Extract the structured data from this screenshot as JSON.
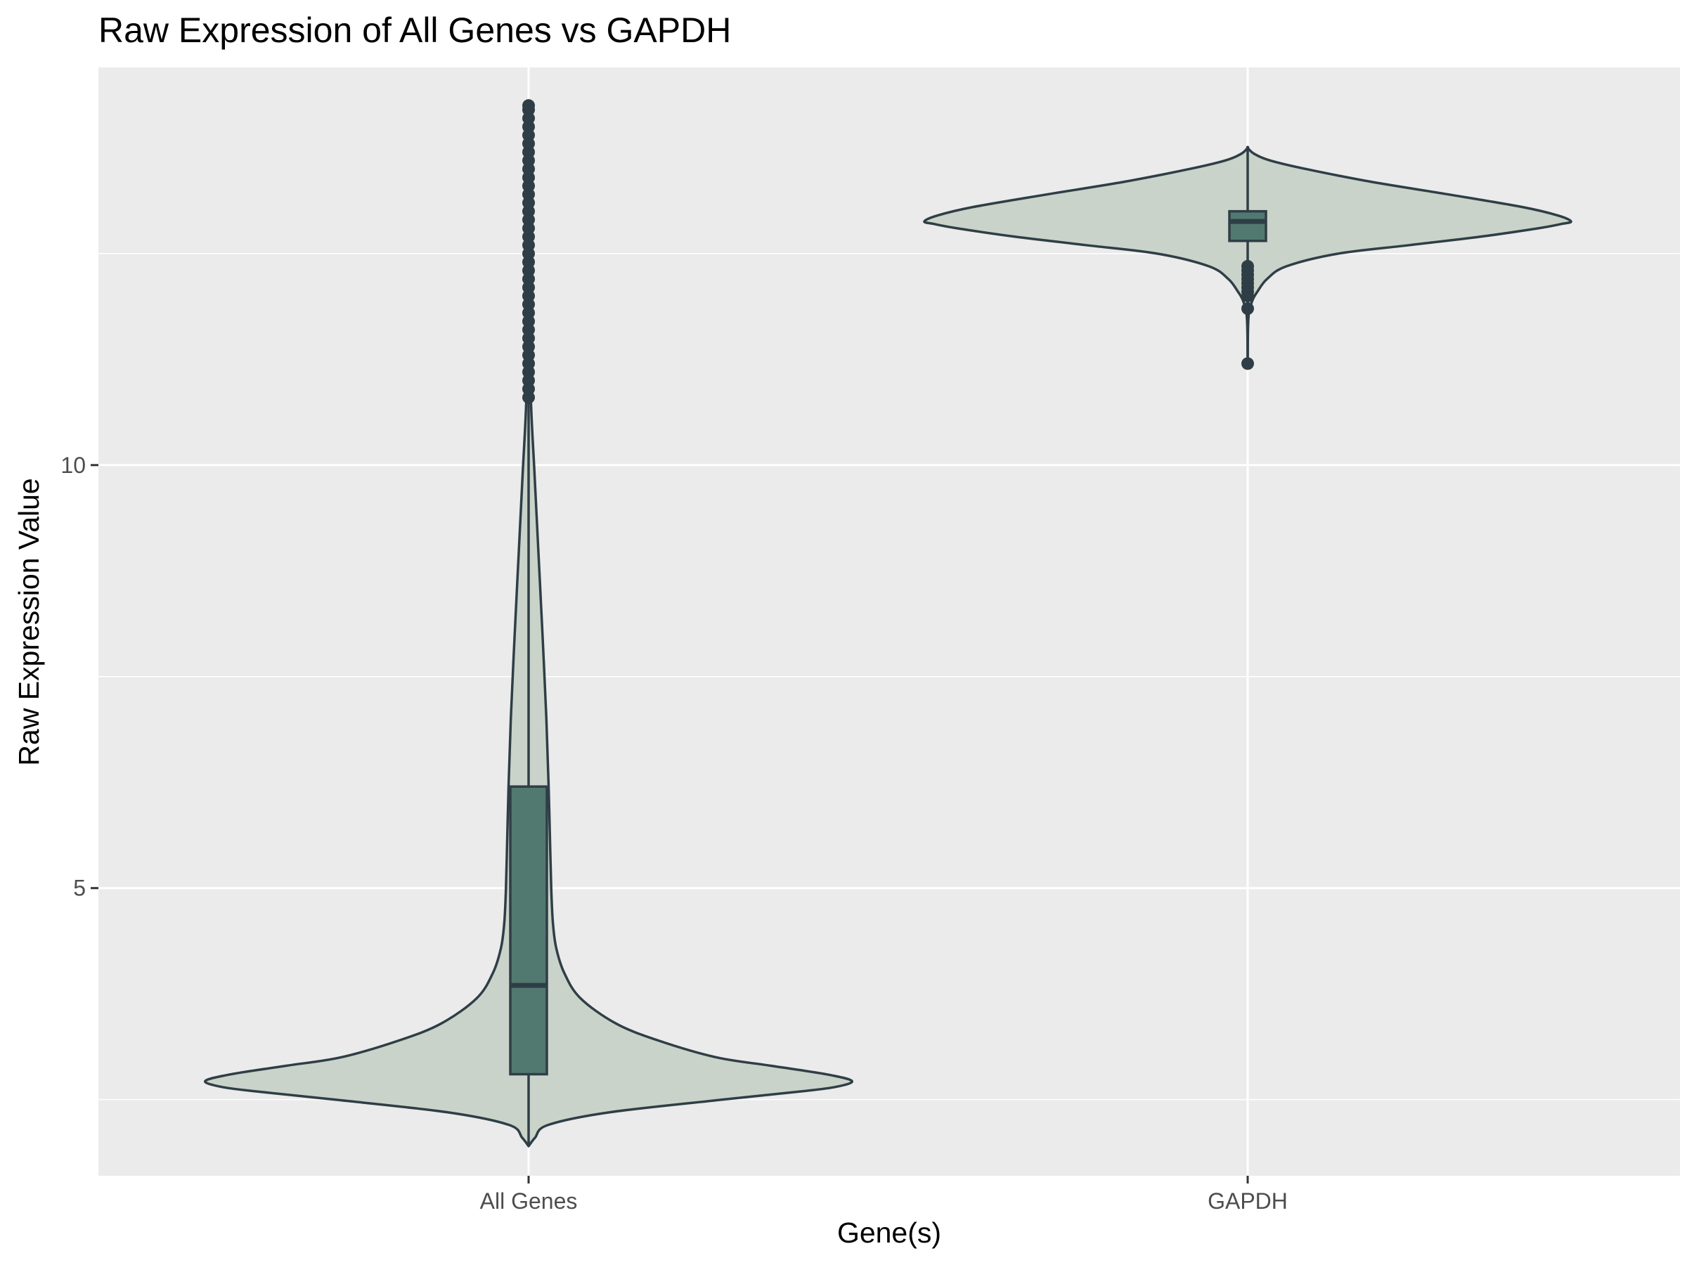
{
  "chart_data": {
    "type": "violin",
    "title": "Raw Expression of All Genes vs GAPDH",
    "xlabel": "Gene(s)",
    "ylabel": "Raw Expression Value",
    "categories": [
      "All Genes",
      "GAPDH"
    ],
    "yticks": [
      5,
      10
    ],
    "ylim": [
      1.6,
      14.7
    ],
    "grid": true,
    "legend": "none",
    "colors": {
      "panel": "#ebebeb",
      "grid": "#ffffff",
      "violin_fill": "#c9d3c9",
      "box_fill": "#52796f",
      "outline": "#2f3e46"
    },
    "series": [
      {
        "category": "All Genes",
        "violin_min": 1.95,
        "violin_max": 14.25,
        "density": [
          [
            1.95,
            0.0
          ],
          [
            2.05,
            0.02
          ],
          [
            2.2,
            0.06
          ],
          [
            2.35,
            0.25
          ],
          [
            2.5,
            0.6
          ],
          [
            2.6,
            0.85
          ],
          [
            2.65,
            0.95
          ],
          [
            2.72,
            1.0
          ],
          [
            2.8,
            0.92
          ],
          [
            2.9,
            0.75
          ],
          [
            3.0,
            0.58
          ],
          [
            3.2,
            0.4
          ],
          [
            3.4,
            0.27
          ],
          [
            3.7,
            0.16
          ],
          [
            4.0,
            0.11
          ],
          [
            4.3,
            0.085
          ],
          [
            4.6,
            0.075
          ],
          [
            5.0,
            0.07
          ],
          [
            5.6,
            0.066
          ],
          [
            6.2,
            0.062
          ],
          [
            7.0,
            0.055
          ],
          [
            8.0,
            0.043
          ],
          [
            9.0,
            0.03
          ],
          [
            10.0,
            0.017
          ],
          [
            10.5,
            0.01
          ],
          [
            11.0,
            0.005
          ],
          [
            11.5,
            0.003
          ],
          [
            12.5,
            0.002
          ],
          [
            13.5,
            0.0015
          ],
          [
            14.0,
            0.001
          ],
          [
            14.25,
            0.0
          ]
        ],
        "box": {
          "q1": 2.8,
          "median": 3.85,
          "q3": 6.2,
          "whisker_low": 1.95,
          "whisker_high": 10.8
        },
        "outliers": [
          10.8,
          10.9,
          11.0,
          11.1,
          11.2,
          11.3,
          11.4,
          11.5,
          11.6,
          11.7,
          11.8,
          11.9,
          12.0,
          12.1,
          12.2,
          12.3,
          12.4,
          12.5,
          12.6,
          12.7,
          12.8,
          12.9,
          13.0,
          13.1,
          13.2,
          13.3,
          13.4,
          13.5,
          13.6,
          13.7,
          13.8,
          13.9,
          14.0,
          14.1,
          14.2,
          14.25
        ]
      },
      {
        "category": "GAPDH",
        "violin_min": 11.2,
        "violin_max": 13.75,
        "density": [
          [
            11.2,
            0.0
          ],
          [
            11.6,
            0.001
          ],
          [
            11.8,
            0.004
          ],
          [
            11.95,
            0.015
          ],
          [
            12.05,
            0.03
          ],
          [
            12.2,
            0.06
          ],
          [
            12.35,
            0.12
          ],
          [
            12.5,
            0.28
          ],
          [
            12.6,
            0.5
          ],
          [
            12.7,
            0.72
          ],
          [
            12.8,
            0.9
          ],
          [
            12.85,
            0.97
          ],
          [
            12.88,
            1.0
          ],
          [
            12.95,
            0.96
          ],
          [
            13.05,
            0.85
          ],
          [
            13.2,
            0.62
          ],
          [
            13.35,
            0.38
          ],
          [
            13.5,
            0.18
          ],
          [
            13.6,
            0.07
          ],
          [
            13.68,
            0.02
          ],
          [
            13.75,
            0.0
          ]
        ],
        "box": {
          "q1": 12.65,
          "median": 12.88,
          "q3": 13.0,
          "whisker_low": 11.2,
          "whisker_high": 13.75
        },
        "outliers": [
          11.2,
          11.85,
          12.0,
          12.05,
          12.1,
          12.15,
          12.2,
          12.25,
          12.3,
          12.35
        ]
      }
    ]
  }
}
